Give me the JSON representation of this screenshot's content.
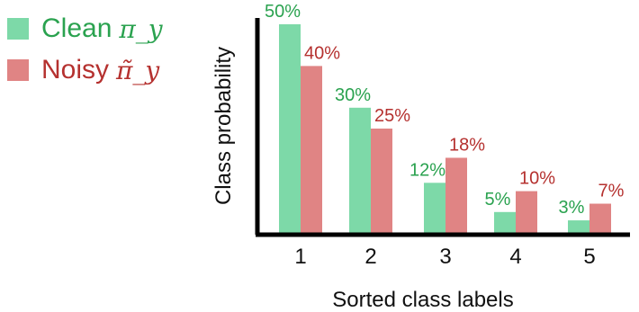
{
  "chart_data": {
    "type": "bar",
    "categories": [
      "1",
      "2",
      "3",
      "4",
      "5"
    ],
    "series": [
      {
        "name": "Clean",
        "symbol": "π_y",
        "values": [
          50,
          30,
          12,
          5,
          3
        ],
        "labels": [
          "50%",
          "30%",
          "12%",
          "5%",
          "3%"
        ],
        "color": "#7dd9a8",
        "label_color": "#2aa24f"
      },
      {
        "name": "Noisy",
        "symbol": "π̃_y",
        "values": [
          40,
          25,
          18,
          10,
          7
        ],
        "labels": [
          "40%",
          "25%",
          "18%",
          "10%",
          "7%"
        ],
        "color": "#e08484",
        "label_color": "#b5312f"
      }
    ],
    "title": "",
    "xlabel": "Sorted class labels",
    "ylabel": "Class probability",
    "ylim": [
      0,
      50
    ],
    "grid": false,
    "legend_position": "top-left"
  }
}
